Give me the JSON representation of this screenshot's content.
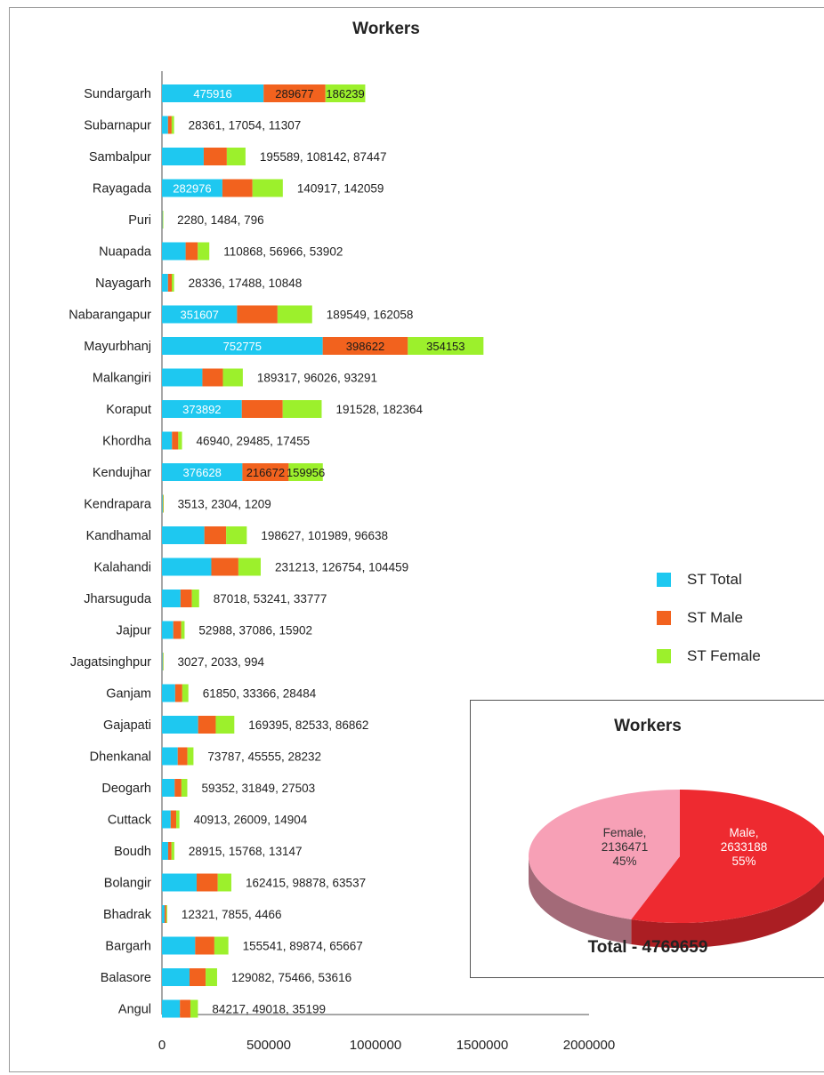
{
  "chart_data": [
    {
      "type": "bar",
      "orientation": "horizontal",
      "stacked": true,
      "title": "Workers",
      "categories": [
        "Sundargarh",
        "Subarnapur",
        "Sambalpur",
        "Rayagada",
        "Puri",
        "Nuapada",
        "Nayagarh",
        "Nabarangapur",
        "Mayurbhanj",
        "Malkangiri",
        "Koraput",
        "Khordha",
        "Kendujhar",
        "Kendrapara",
        "Kandhamal",
        "Kalahandi",
        "Jharsuguda",
        "Jajpur",
        "Jagatsinghpur",
        "Ganjam",
        "Gajapati",
        "Dhenkanal",
        "Deogarh",
        "Cuttack",
        "Boudh",
        "Bolangir",
        "Bhadrak",
        "Bargarh",
        "Balasore",
        "Angul"
      ],
      "series": [
        {
          "name": "ST Total",
          "color": "#1ec8f0",
          "values": [
            475916,
            28361,
            195589,
            282976,
            2280,
            110868,
            28336,
            351607,
            752775,
            189317,
            373892,
            46940,
            376628,
            3513,
            198627,
            231213,
            87018,
            52988,
            3027,
            61850,
            169395,
            73787,
            59352,
            40913,
            28915,
            162415,
            12321,
            155541,
            129082,
            84217
          ]
        },
        {
          "name": "ST Male",
          "color": "#f2621e",
          "values": [
            289677,
            17054,
            108142,
            140917,
            1484,
            56966,
            17488,
            189549,
            398622,
            96026,
            191528,
            29485,
            216672,
            2304,
            101989,
            126754,
            53241,
            37086,
            2033,
            33366,
            82533,
            45555,
            31849,
            26009,
            15768,
            98878,
            7855,
            89874,
            75466,
            49018
          ]
        },
        {
          "name": "ST Female",
          "color": "#9cf02c",
          "values": [
            186239,
            11307,
            87447,
            142059,
            796,
            53902,
            10848,
            162058,
            354153,
            93291,
            182364,
            17455,
            159956,
            1209,
            96638,
            104459,
            33777,
            15902,
            994,
            28484,
            86862,
            28232,
            27503,
            14904,
            13147,
            63537,
            4466,
            65667,
            53616,
            35199
          ]
        }
      ],
      "data_labels": [
        {
          "index": 0,
          "total": "475916",
          "male": "289677",
          "female": "186239"
        },
        {
          "index": 1,
          "text": "28361, 17054, 11307"
        },
        {
          "index": 2,
          "text": "195589, 108142, 87447"
        },
        {
          "index": 3,
          "total": "282976",
          "text": "140917, 142059"
        },
        {
          "index": 4,
          "text": "2280, 1484, 796"
        },
        {
          "index": 5,
          "text": "110868, 56966, 53902"
        },
        {
          "index": 6,
          "text": "28336, 17488, 10848"
        },
        {
          "index": 7,
          "total": "351607",
          "text": "189549, 162058"
        },
        {
          "index": 8,
          "total": "752775",
          "male": "398622",
          "female": "354153"
        },
        {
          "index": 9,
          "text": "189317, 96026, 93291"
        },
        {
          "index": 10,
          "total": "373892",
          "text": "191528, 182364"
        },
        {
          "index": 11,
          "text": "46940, 29485, 17455"
        },
        {
          "index": 12,
          "total": "376628",
          "male": "216672",
          "female": "159956"
        },
        {
          "index": 13,
          "text": "3513, 2304, 1209"
        },
        {
          "index": 14,
          "text": "198627, 101989, 96638"
        },
        {
          "index": 15,
          "text": "231213, 126754, 104459"
        },
        {
          "index": 16,
          "text": "87018, 53241, 33777"
        },
        {
          "index": 17,
          "text": "52988, 37086, 15902"
        },
        {
          "index": 18,
          "text": "3027, 2033, 994"
        },
        {
          "index": 19,
          "text": "61850, 33366, 28484"
        },
        {
          "index": 20,
          "text": "169395, 82533, 86862"
        },
        {
          "index": 21,
          "text": "73787, 45555, 28232"
        },
        {
          "index": 22,
          "text": "59352, 31849, 27503"
        },
        {
          "index": 23,
          "text": "40913, 26009, 14904"
        },
        {
          "index": 24,
          "text": "28915, 15768, 13147"
        },
        {
          "index": 25,
          "text": "162415, 98878, 63537"
        },
        {
          "index": 26,
          "text": "12321,  7855, 4466"
        },
        {
          "index": 27,
          "text": "155541, 89874, 65667"
        },
        {
          "index": 28,
          "text": "129082, 75466, 53616"
        },
        {
          "index": 29,
          "text": "84217, 49018, 35199"
        }
      ],
      "x_ticks": [
        0,
        500000,
        1000000,
        1500000,
        2000000
      ],
      "xlim": [
        0,
        2000000
      ],
      "grid": false,
      "legend_position": "right"
    },
    {
      "type": "pie",
      "title": "Workers",
      "slices": [
        {
          "label": "Male",
          "value": 2633188,
          "percent": "55%",
          "color": "#ee2a30"
        },
        {
          "label": "Female",
          "value": 2136471,
          "percent": "45%",
          "color": "#f7a0b6"
        }
      ],
      "footer": "Total - 4769659"
    }
  ],
  "legend": [
    {
      "label": "ST Total",
      "color": "#1ec8f0"
    },
    {
      "label": "ST Male",
      "color": "#f2621e"
    },
    {
      "label": "ST Female",
      "color": "#9cf02c"
    }
  ]
}
